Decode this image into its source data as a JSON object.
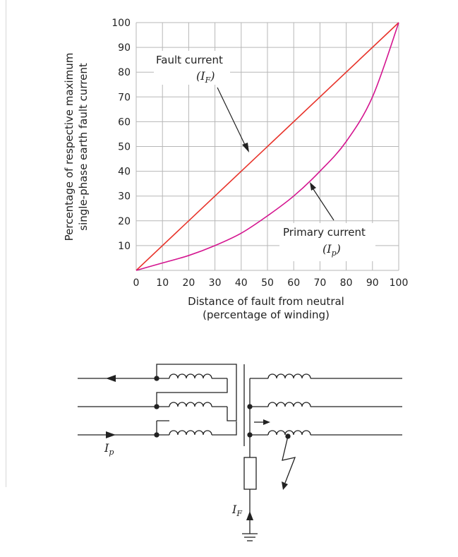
{
  "chart_data": {
    "type": "line",
    "xlabel_line1": "Distance of fault from neutral",
    "xlabel_line2": "(percentage of winding)",
    "ylabel_line1": "Percentage of respective maximum",
    "ylabel_line2": "single-phase earth  fault current",
    "xlim": [
      0,
      100
    ],
    "ylim": [
      0,
      100
    ],
    "xticks": [
      "0",
      "10",
      "20",
      "30",
      "40",
      "50",
      "60",
      "70",
      "80",
      "90",
      "100"
    ],
    "yticks": [
      "10",
      "20",
      "30",
      "40",
      "50",
      "60",
      "70",
      "80",
      "90",
      "100"
    ],
    "grid": true,
    "series": [
      {
        "name": "Fault current",
        "symbol": "I",
        "subscript": "F",
        "color": "#e8332a",
        "x": [
          0,
          100
        ],
        "y": [
          0,
          100
        ]
      },
      {
        "name": "Primary current",
        "symbol": "I",
        "subscript": "p",
        "color": "#d4148f",
        "x": [
          0,
          10,
          20,
          30,
          40,
          50,
          60,
          70,
          80,
          90,
          100
        ],
        "y": [
          0,
          3,
          6,
          10,
          15,
          22,
          30,
          40,
          52,
          70,
          100
        ]
      }
    ],
    "annotations": [
      {
        "label": "Fault current",
        "symbol": "I",
        "subscript": "F"
      },
      {
        "label": "Primary current",
        "symbol": "I",
        "subscript": "p"
      }
    ]
  },
  "diagram": {
    "ip_label": "I",
    "ip_sub": "p",
    "if_label": "I",
    "if_sub": "F"
  }
}
